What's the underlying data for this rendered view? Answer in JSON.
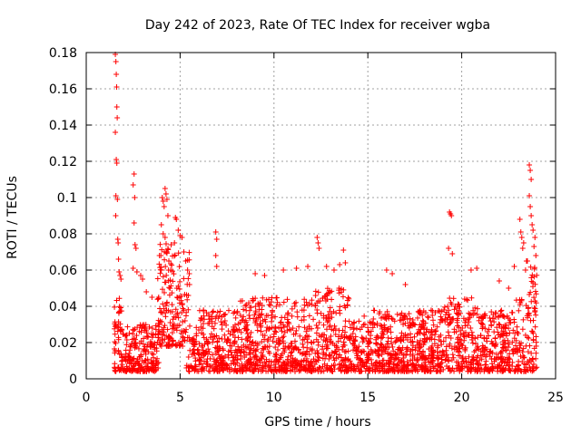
{
  "chart_data": {
    "type": "scatter",
    "title": "Day 242 of 2023, Rate Of TEC Index for receiver wgba",
    "xlabel": "GPS time / hours",
    "ylabel": "ROTI / TECUs",
    "xlim": [
      0,
      25
    ],
    "ylim": [
      0,
      0.18
    ],
    "x_ticks": [
      0,
      5,
      10,
      15,
      20,
      25
    ],
    "x_tick_labels": [
      "0",
      "5",
      "10",
      "15",
      "20",
      "25"
    ],
    "y_ticks": [
      0,
      0.02,
      0.04,
      0.06,
      0.08,
      0.1,
      0.12,
      0.14,
      0.16,
      0.18
    ],
    "y_tick_labels": [
      "0",
      "0.02",
      "0.04",
      "0.06",
      "0.08",
      "0.1",
      "0.12",
      "0.14",
      "0.16",
      "0.18"
    ],
    "grid": true,
    "marker": "+",
    "marker_color": "#ff0000",
    "series": [
      {
        "name": "ROTI",
        "points": [
          [
            1.55,
            0.179
          ],
          [
            1.58,
            0.175
          ],
          [
            1.6,
            0.168
          ],
          [
            1.62,
            0.161
          ],
          [
            1.63,
            0.15
          ],
          [
            1.65,
            0.144
          ],
          [
            1.55,
            0.136
          ],
          [
            1.6,
            0.121
          ],
          [
            1.63,
            0.119
          ],
          [
            1.58,
            0.101
          ],
          [
            1.66,
            0.099
          ],
          [
            1.57,
            0.09
          ],
          [
            1.68,
            0.077
          ],
          [
            1.7,
            0.075
          ],
          [
            1.72,
            0.066
          ],
          [
            1.75,
            0.059
          ],
          [
            1.8,
            0.057
          ],
          [
            1.85,
            0.055
          ],
          [
            2.55,
            0.113
          ],
          [
            2.5,
            0.107
          ],
          [
            2.58,
            0.1
          ],
          [
            2.55,
            0.086
          ],
          [
            2.6,
            0.074
          ],
          [
            2.65,
            0.072
          ],
          [
            2.5,
            0.061
          ],
          [
            2.7,
            0.059
          ],
          [
            2.9,
            0.057
          ],
          [
            3.0,
            0.055
          ],
          [
            3.2,
            0.048
          ],
          [
            3.5,
            0.045
          ],
          [
            4.05,
            0.1
          ],
          [
            4.1,
            0.098
          ],
          [
            4.15,
            0.095
          ],
          [
            4.2,
            0.105
          ],
          [
            4.25,
            0.102
          ],
          [
            4.3,
            0.099
          ],
          [
            4.35,
            0.09
          ],
          [
            4.0,
            0.085
          ],
          [
            4.1,
            0.08
          ],
          [
            4.2,
            0.078
          ],
          [
            4.3,
            0.07
          ],
          [
            3.9,
            0.068
          ],
          [
            4.4,
            0.065
          ],
          [
            4.5,
            0.06
          ],
          [
            4.0,
            0.06
          ],
          [
            4.75,
            0.089
          ],
          [
            4.8,
            0.088
          ],
          [
            4.9,
            0.082
          ],
          [
            5.0,
            0.079
          ],
          [
            5.1,
            0.078
          ],
          [
            4.7,
            0.075
          ],
          [
            5.2,
            0.07
          ],
          [
            5.3,
            0.065
          ],
          [
            5.4,
            0.06
          ],
          [
            5.5,
            0.052
          ],
          [
            6.9,
            0.081
          ],
          [
            6.95,
            0.077
          ],
          [
            6.9,
            0.068
          ],
          [
            6.95,
            0.062
          ],
          [
            9.0,
            0.058
          ],
          [
            9.5,
            0.057
          ],
          [
            10.5,
            0.06
          ],
          [
            11.2,
            0.061
          ],
          [
            11.8,
            0.062
          ],
          [
            12.3,
            0.078
          ],
          [
            12.35,
            0.075
          ],
          [
            12.4,
            0.072
          ],
          [
            12.8,
            0.062
          ],
          [
            13.2,
            0.06
          ],
          [
            13.5,
            0.063
          ],
          [
            13.7,
            0.071
          ],
          [
            13.8,
            0.064
          ],
          [
            16.0,
            0.06
          ],
          [
            16.3,
            0.058
          ],
          [
            17.0,
            0.052
          ],
          [
            19.35,
            0.092
          ],
          [
            19.4,
            0.091
          ],
          [
            19.45,
            0.09
          ],
          [
            19.3,
            0.072
          ],
          [
            19.5,
            0.069
          ],
          [
            20.5,
            0.06
          ],
          [
            20.8,
            0.061
          ],
          [
            22.0,
            0.054
          ],
          [
            22.5,
            0.05
          ],
          [
            22.8,
            0.062
          ],
          [
            23.1,
            0.088
          ],
          [
            23.15,
            0.081
          ],
          [
            23.2,
            0.078
          ],
          [
            23.3,
            0.075
          ],
          [
            23.25,
            0.072
          ],
          [
            23.6,
            0.118
          ],
          [
            23.65,
            0.115
          ],
          [
            23.7,
            0.11
          ],
          [
            23.6,
            0.101
          ],
          [
            23.65,
            0.095
          ],
          [
            23.7,
            0.09
          ],
          [
            23.75,
            0.085
          ],
          [
            23.8,
            0.082
          ],
          [
            23.9,
            0.078
          ],
          [
            23.85,
            0.073
          ],
          [
            23.95,
            0.068
          ],
          [
            23.5,
            0.065
          ],
          [
            23.4,
            0.06
          ]
        ]
      }
    ]
  }
}
